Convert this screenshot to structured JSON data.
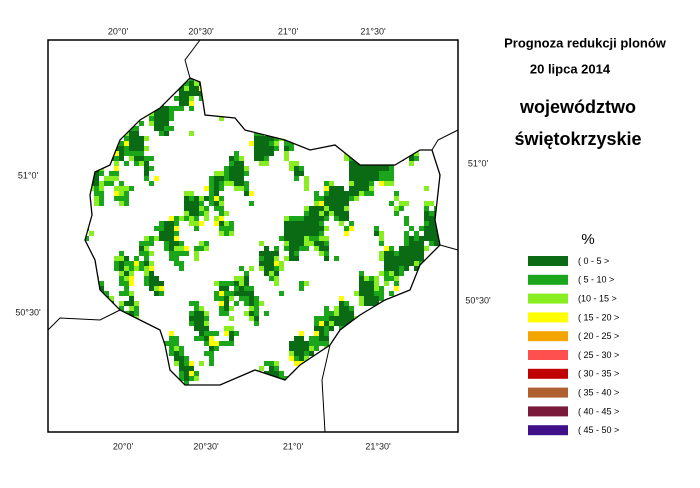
{
  "header": {
    "title": "Prognoza redukcji plonów",
    "date": "20 lipca 2014"
  },
  "region": {
    "lines": [
      "województwo",
      "świętokrzyskie"
    ]
  },
  "map": {
    "longitudes": [
      "20°0'",
      "20°30'",
      "21°0'",
      "21°30'"
    ],
    "latitudes": [
      "51°0'",
      "50°30'"
    ]
  },
  "legend": {
    "unit": "%",
    "items": [
      {
        "label": "( 0 - 5 >",
        "color": "#0a6b14"
      },
      {
        "label": "( 5 - 10 >",
        "color": "#1aa51a"
      },
      {
        "label": "(10 - 15 >",
        "color": "#88ee22"
      },
      {
        "label": "( 15 - 20 >",
        "color": "#ffff00"
      },
      {
        "label": "( 20 - 25 >",
        "color": "#f5a500"
      },
      {
        "label": "( 25 - 30 >",
        "color": "#ff5050"
      },
      {
        "label": "( 30 - 35 >",
        "color": "#c00000"
      },
      {
        "label": "( 35 - 40 >",
        "color": "#b06030"
      },
      {
        "label": "( 40 - 45 >",
        "color": "#7a1a3a"
      },
      {
        "label": "( 45 - 50 >",
        "color": "#40108a"
      }
    ]
  }
}
